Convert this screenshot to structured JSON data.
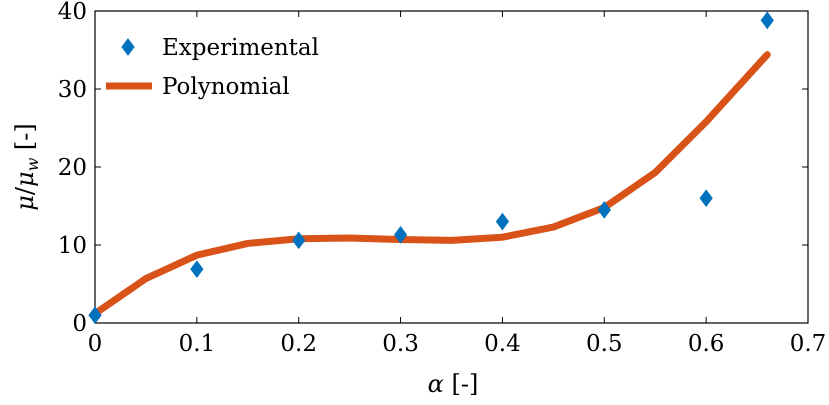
{
  "chart_data": {
    "type": "scatter",
    "title": "",
    "xlabel": "α [-]",
    "ylabel": "μ/μ_w [-]",
    "xlim": [
      0,
      0.7
    ],
    "ylim": [
      0,
      40
    ],
    "x_ticks": [
      "0",
      "0.1",
      "0.2",
      "0.3",
      "0.4",
      "0.5",
      "0.6",
      "0.7"
    ],
    "y_ticks": [
      "0",
      "10",
      "20",
      "30",
      "40"
    ],
    "grid": false,
    "legend_position": "top-left",
    "series": [
      {
        "name": "Experimental",
        "kind": "scatter",
        "marker": "diamond",
        "color": "#0072BD",
        "x": [
          0,
          0.1,
          0.2,
          0.3,
          0.4,
          0.5,
          0.6,
          0.66
        ],
        "y": [
          1.0,
          6.9,
          10.6,
          11.3,
          13.0,
          14.5,
          16.0,
          38.8
        ]
      },
      {
        "name": "Polynomial",
        "kind": "line",
        "color": "#D95319",
        "x": [
          0,
          0.05,
          0.1,
          0.15,
          0.2,
          0.25,
          0.3,
          0.35,
          0.4,
          0.45,
          0.5,
          0.55,
          0.6,
          0.66
        ],
        "y": [
          1.2,
          5.7,
          8.7,
          10.2,
          10.8,
          10.9,
          10.7,
          10.6,
          11.0,
          12.3,
          14.8,
          19.3,
          25.8,
          34.4
        ]
      }
    ]
  }
}
